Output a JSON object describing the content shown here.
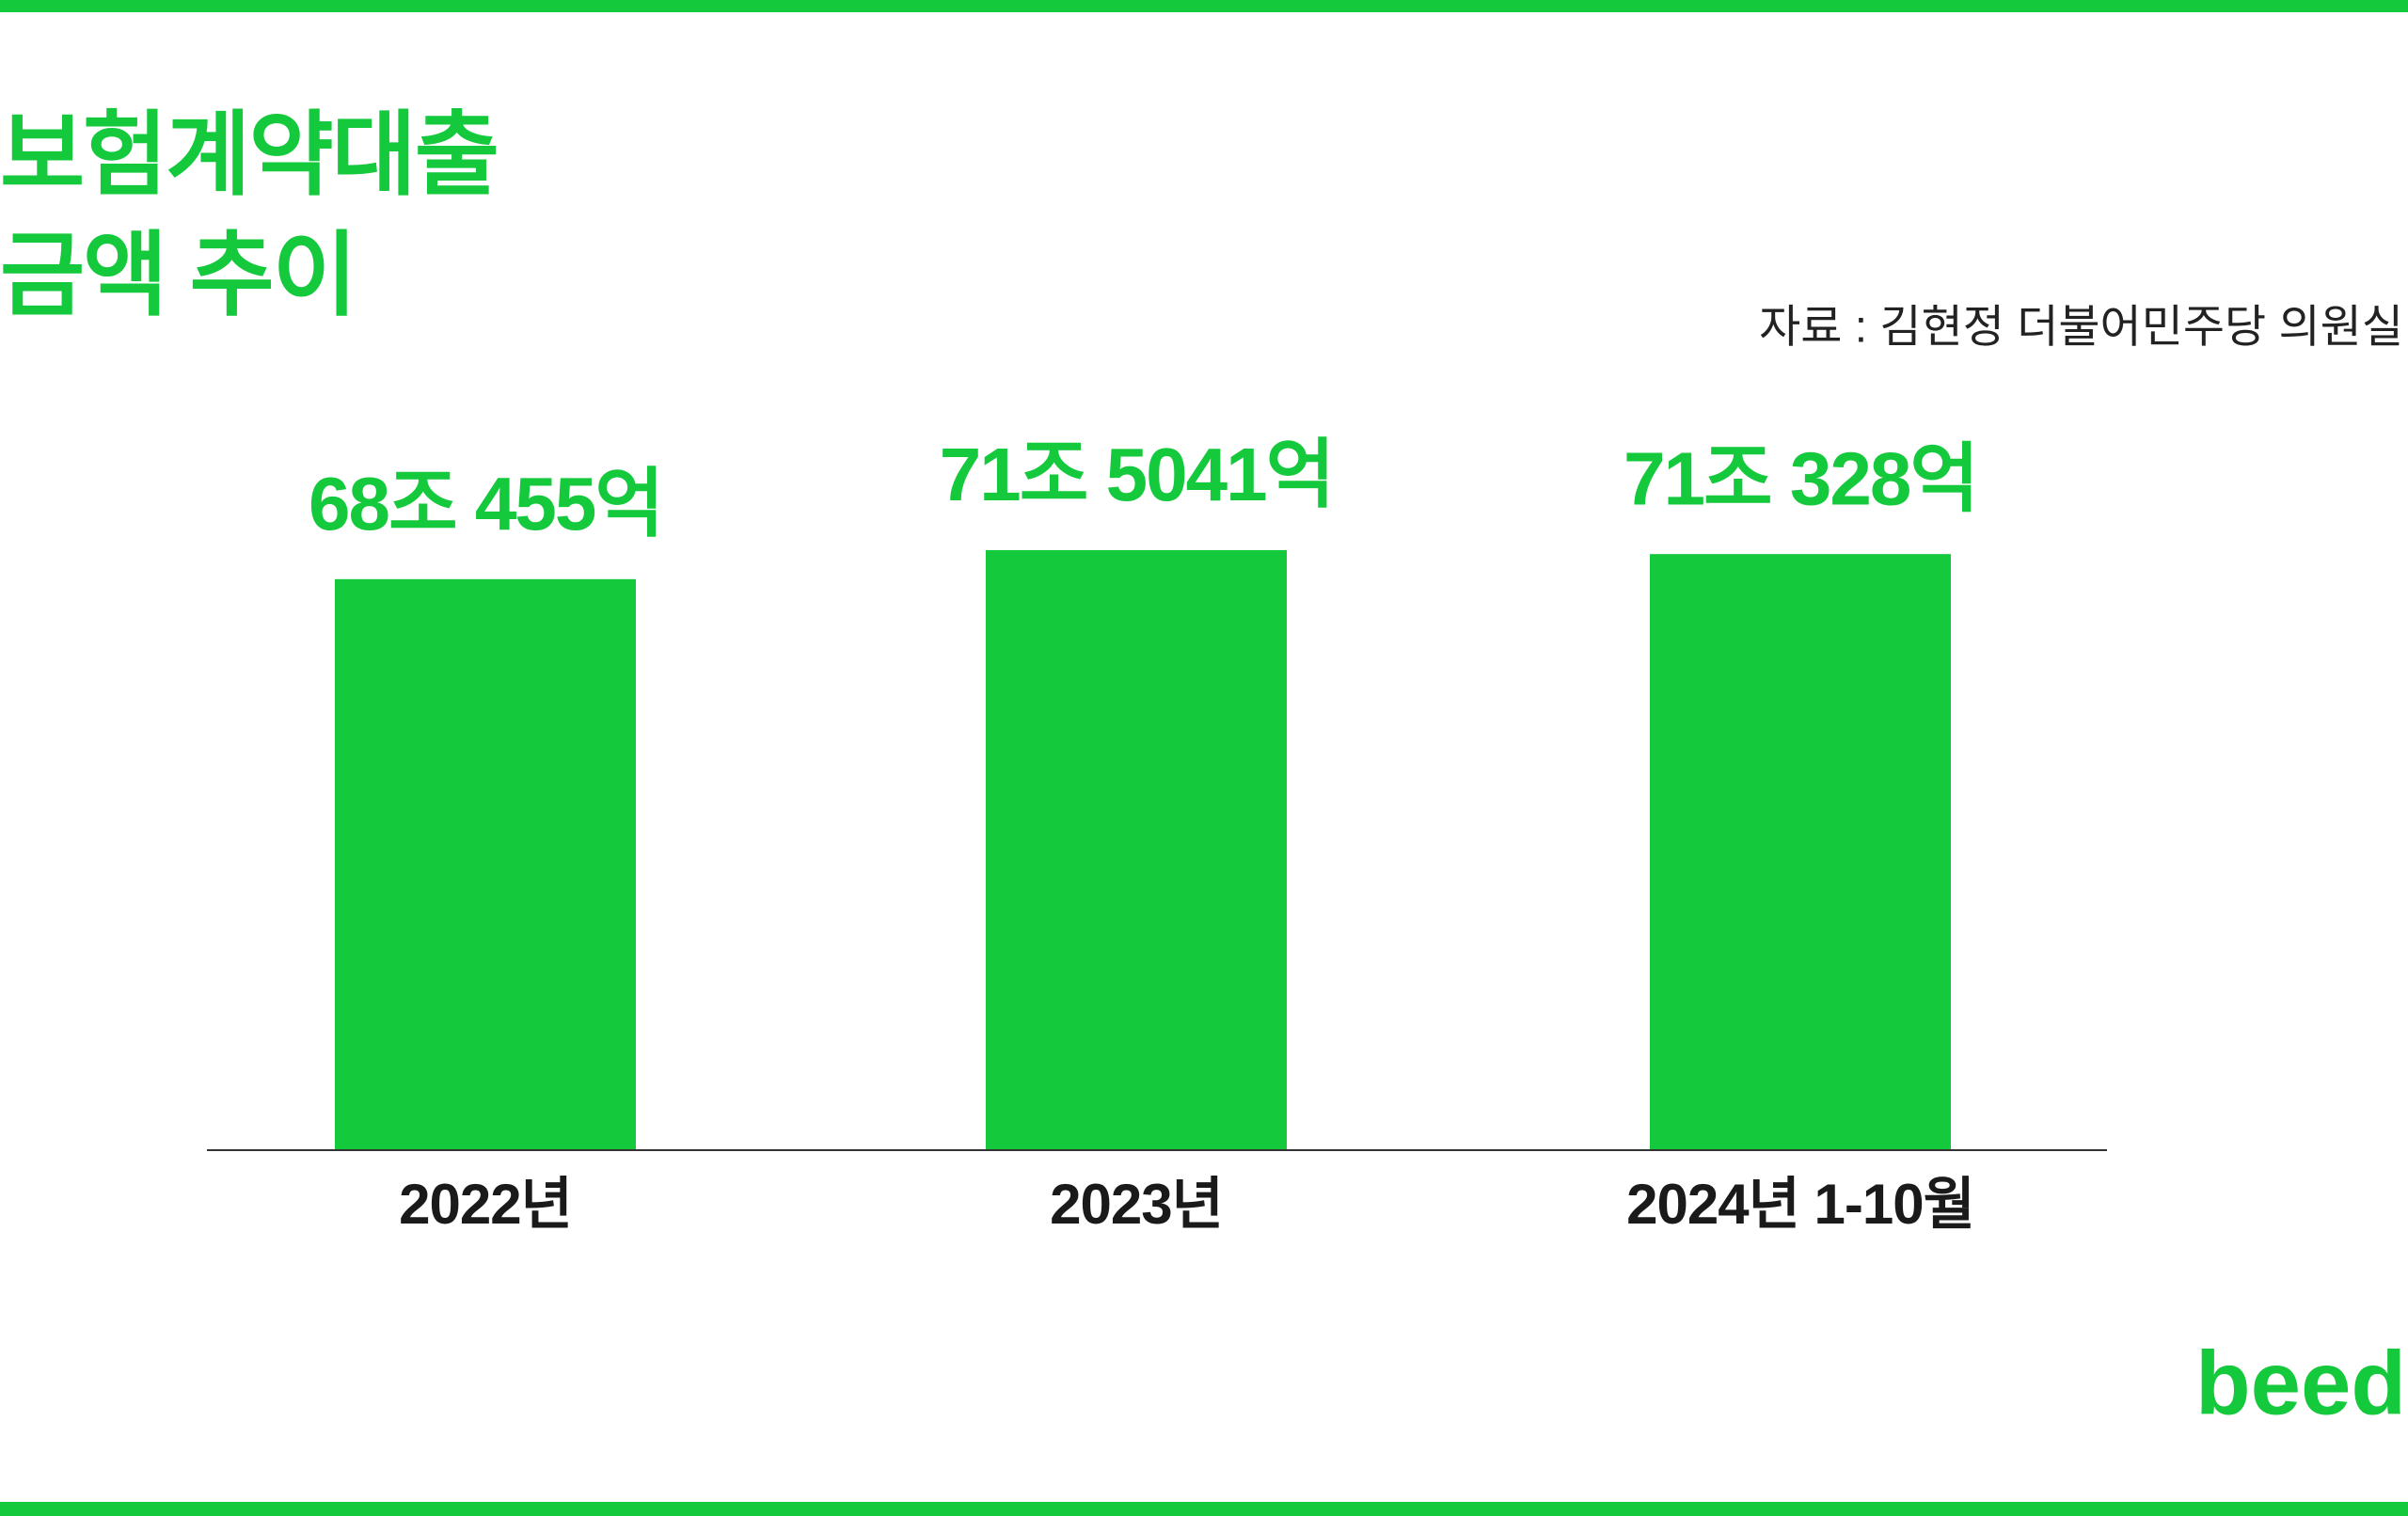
{
  "chart_data": {
    "type": "bar",
    "title": "보험계약대출\n금액 추이",
    "source": "자료 : 김현정 더불어민주당 의원실",
    "categories": [
      "2022년",
      "2023년",
      "2024년 1-10월"
    ],
    "values": [
      680455,
      715041,
      710328
    ],
    "value_labels": [
      "68조 455억",
      "71조 5041억",
      "71조 328억"
    ],
    "color": "#14c93c",
    "ylim": [
      0,
      780000
    ],
    "grid": false
  },
  "logo": "beed"
}
